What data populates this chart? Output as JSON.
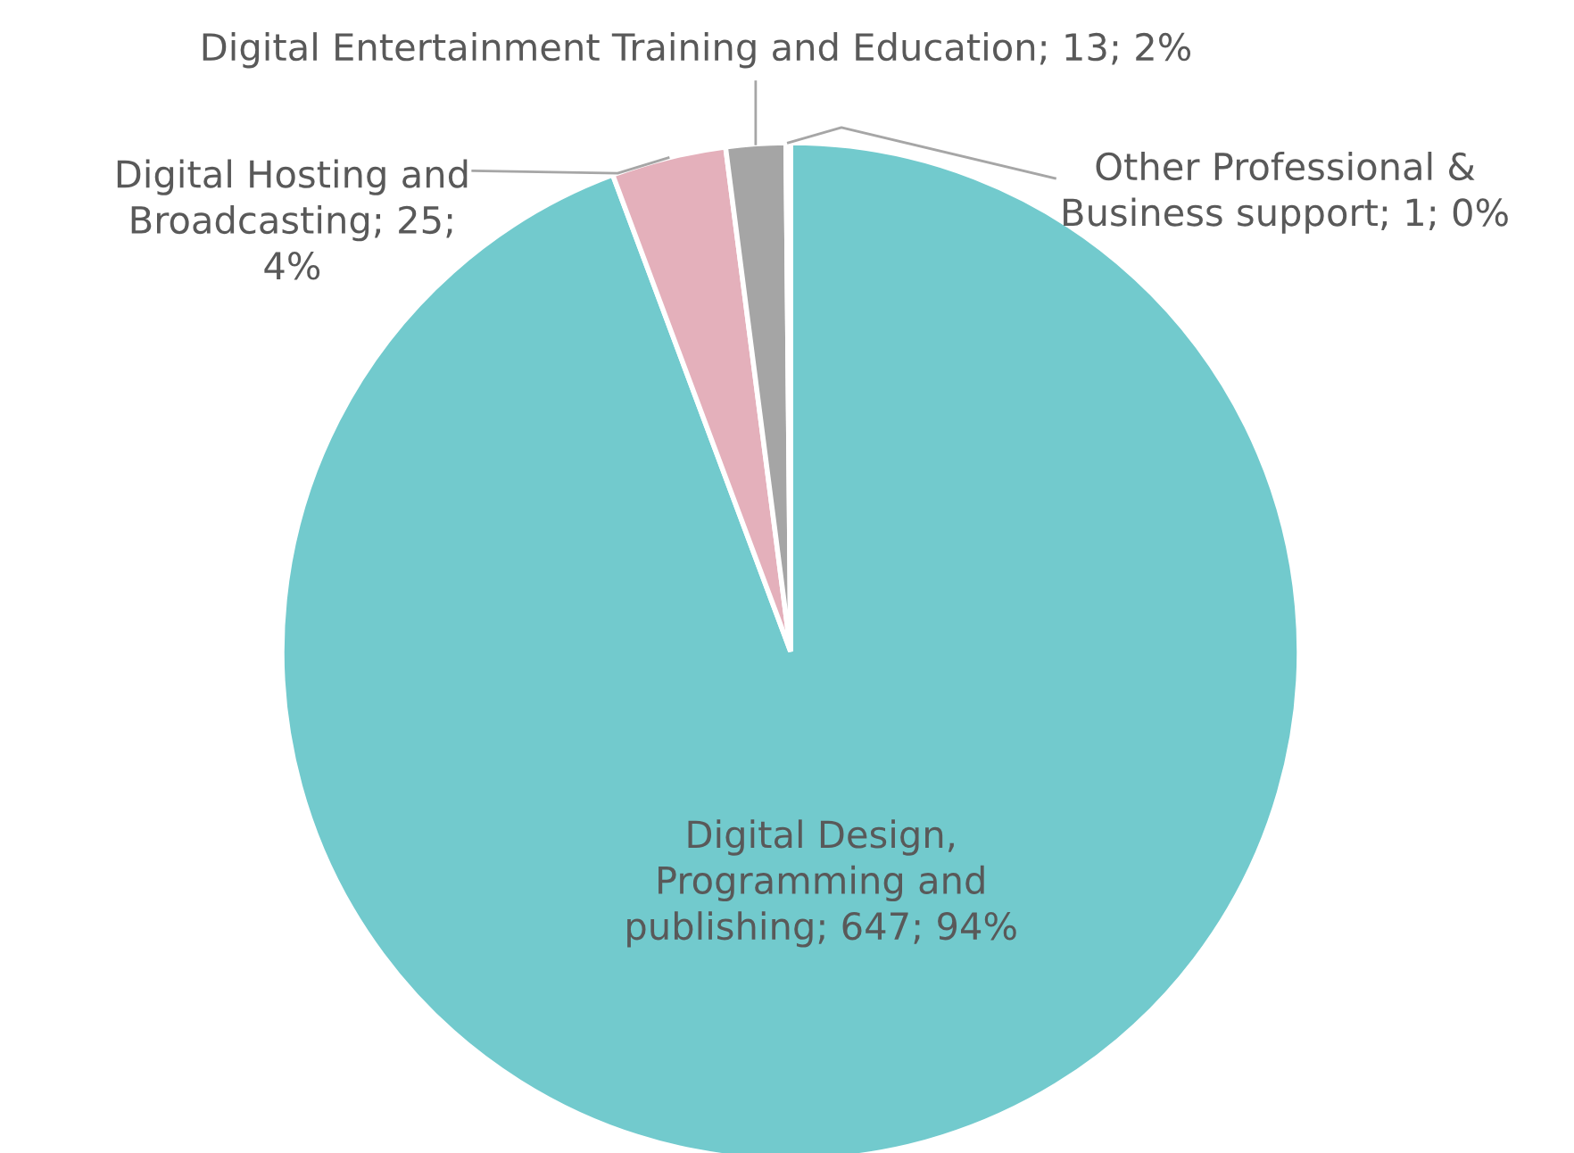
{
  "chart_data": {
    "type": "pie",
    "categories": [
      "Digital Design, Programming and publishing",
      "Digital Hosting and Broadcasting",
      "Digital Entertainment Training and Education",
      "Other Professional & Business support"
    ],
    "values": [
      647,
      25,
      13,
      1
    ],
    "value_labels": [
      "647; 94%",
      "25; 4%",
      "13; 2%",
      "1; 0%"
    ],
    "colors": [
      "#72cacd",
      "#e4b0bb",
      "#a5a5a5",
      "#4f81bd"
    ],
    "legend": false
  }
}
